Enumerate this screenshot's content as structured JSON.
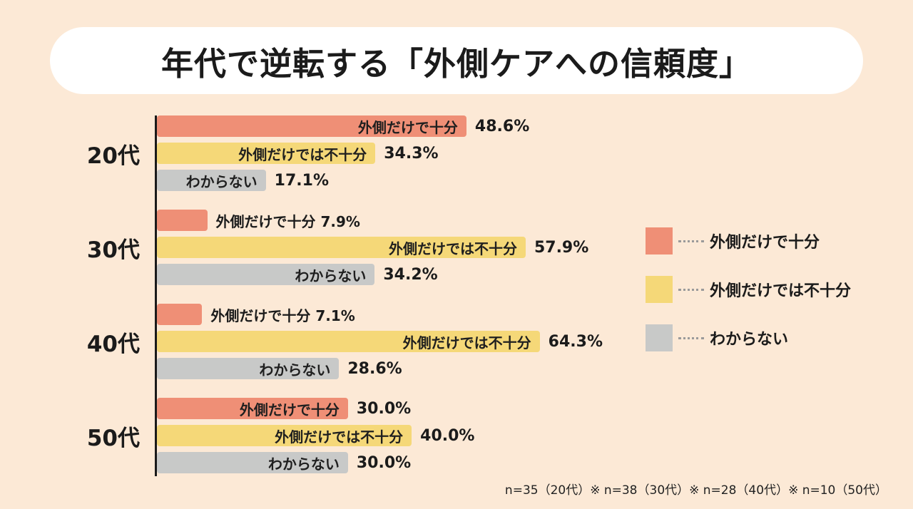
{
  "title": "年代で逆転する「外側ケアへの信頼度」",
  "footnote": "n=35（20代）※ n=38（30代）※ n=28（40代）※ n=10（50代）",
  "colors": {
    "background": "#fce9d6",
    "title_pill": "#ffffff",
    "axis": "#1a1a1a",
    "text": "#1b1b1b",
    "series_sufficient": "#ef8f76",
    "series_insufficient": "#f5d878",
    "series_unknown": "#c8c9c8"
  },
  "chart_data": {
    "type": "bar",
    "orientation": "horizontal",
    "title": "年代で逆転する「外側ケアへの信頼度」",
    "categories": [
      "20代",
      "30代",
      "40代",
      "50代"
    ],
    "series": [
      {
        "name": "外側だけで十分",
        "color": "#ef8f76",
        "values": [
          48.6,
          7.9,
          7.1,
          30.0
        ],
        "labels": [
          "48.6%",
          "7.9%",
          "7.1%",
          "30.0%"
        ]
      },
      {
        "name": "外側だけでは不十分",
        "color": "#f5d878",
        "values": [
          34.3,
          57.9,
          64.3,
          40.0
        ],
        "labels": [
          "34.3%",
          "57.9%",
          "64.3%",
          "40.0%"
        ]
      },
      {
        "name": "わからない",
        "color": "#c8c9c8",
        "values": [
          17.1,
          34.2,
          28.6,
          30.0
        ],
        "labels": [
          "17.1%",
          "34.2%",
          "28.6%",
          "30.0%"
        ]
      }
    ],
    "value_suffix": "%",
    "xlim": [
      0,
      70
    ],
    "grid": false,
    "legend_position": "right",
    "sample_sizes": {
      "20代": 35,
      "30代": 38,
      "40代": 28,
      "50代": 10
    }
  }
}
